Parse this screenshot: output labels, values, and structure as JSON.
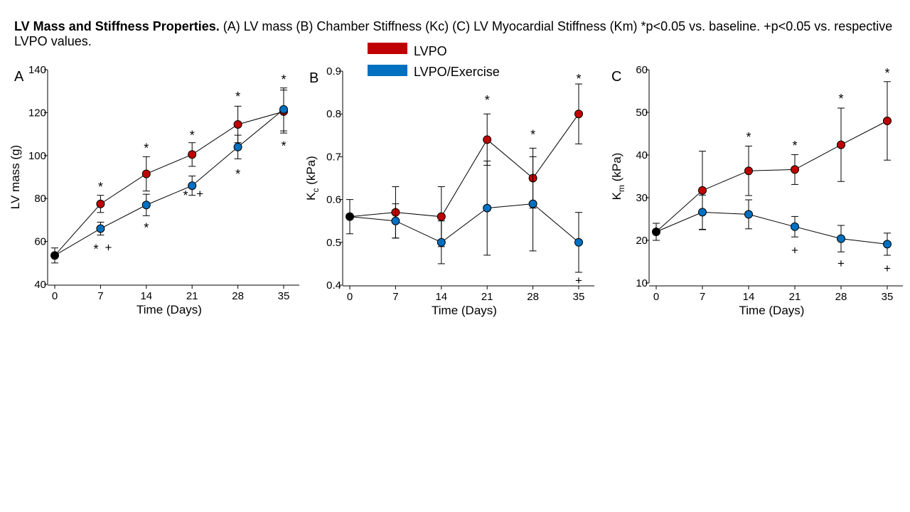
{
  "caption": {
    "bold": "LV Mass and Stiffness Properties.",
    "text": " (A) LV mass (B) Chamber Stiffness (Kc) (C) LV Myocardial Stiffness (Km) *p<0.05 vs. baseline. +p<0.05 vs. respective LVPO values."
  },
  "legend": [
    {
      "label": "LVPO",
      "color": "#c00000"
    },
    {
      "label": "LVPO/Exercise",
      "color": "#0070c0"
    }
  ],
  "colors": {
    "baseline": "#000000",
    "lvpo": "#c00000",
    "exercise": "#0070c0"
  },
  "chart_data": [
    {
      "panel": "A",
      "type": "line",
      "xlabel": "Time (Days)",
      "ylabel": "LV mass (g)",
      "ylabel_sub": "",
      "x": [
        0,
        7,
        14,
        21,
        28,
        35
      ],
      "ylim": [
        40,
        140
      ],
      "yticks": [
        40,
        60,
        80,
        100,
        120,
        140
      ],
      "baseline": {
        "x": 0,
        "y": 53.5,
        "err": 3.5
      },
      "series": [
        {
          "name": "LVPO",
          "x": [
            0,
            7,
            14,
            21,
            28,
            35
          ],
          "values": [
            53.5,
            77.5,
            91.5,
            100.5,
            114.5,
            120.5
          ],
          "err": [
            3.5,
            4,
            8,
            5.5,
            8.5,
            10
          ],
          "marker": [
            false,
            true,
            true,
            true,
            true,
            true
          ],
          "annotations": [
            {
              "x": 7,
              "text": "*",
              "y": 86
            },
            {
              "x": 14,
              "text": "*",
              "y": 104
            },
            {
              "x": 21,
              "text": "*",
              "y": 110
            },
            {
              "x": 28,
              "text": "*",
              "y": 128
            },
            {
              "x": 35,
              "text": "*",
              "y": 136
            }
          ]
        },
        {
          "name": "LVPO/Exercise",
          "x": [
            0,
            7,
            14,
            21,
            28,
            35
          ],
          "values": [
            53.5,
            66,
            77,
            86,
            104,
            121.5
          ],
          "err": [
            3.5,
            3,
            5,
            4.5,
            5.5,
            10
          ],
          "marker": [
            false,
            true,
            true,
            true,
            true,
            true
          ],
          "annotations": [
            {
              "x": 6.3,
              "text": "*",
              "y": 57
            },
            {
              "x": 8.2,
              "text": "+",
              "y": 57
            },
            {
              "x": 14,
              "text": "*",
              "y": 67
            },
            {
              "x": 20,
              "text": "*",
              "y": 82
            },
            {
              "x": 22.2,
              "text": "+",
              "y": 82
            },
            {
              "x": 28,
              "text": "*",
              "y": 92
            },
            {
              "x": 35,
              "text": "*",
              "y": 105
            }
          ]
        }
      ]
    },
    {
      "panel": "B",
      "type": "line",
      "xlabel": "Time (Days)",
      "ylabel": "K",
      "ylabel_sub": "c",
      "ylabel_unit": "(kPa)",
      "x": [
        0,
        7,
        14,
        21,
        28,
        35
      ],
      "ylim": [
        0.4,
        0.9
      ],
      "yticks": [
        0.4,
        0.5,
        0.6,
        0.7,
        0.8,
        0.9
      ],
      "baseline": {
        "x": 0,
        "y": 0.56,
        "err": 0.04
      },
      "series": [
        {
          "name": "LVPO",
          "x": [
            0,
            7,
            14,
            21,
            28,
            35
          ],
          "values": [
            0.56,
            0.57,
            0.56,
            0.74,
            0.65,
            0.8
          ],
          "err": [
            0.04,
            0.06,
            0.07,
            0.06,
            0.07,
            0.07
          ],
          "marker": [
            false,
            true,
            true,
            true,
            true,
            true
          ],
          "annotations": [
            {
              "x": 21,
              "text": "*",
              "y": 0.835
            },
            {
              "x": 28,
              "text": "*",
              "y": 0.755
            },
            {
              "x": 35,
              "text": "*",
              "y": 0.885
            }
          ]
        },
        {
          "name": "LVPO/Exercise",
          "x": [
            0,
            7,
            14,
            21,
            28,
            35
          ],
          "values": [
            0.56,
            0.55,
            0.5,
            0.58,
            0.59,
            0.5
          ],
          "err": [
            0.04,
            0.04,
            0.05,
            0.11,
            0.11,
            0.07
          ],
          "marker": [
            false,
            true,
            true,
            true,
            true,
            true
          ],
          "annotations": [
            {
              "x": 35,
              "text": "+",
              "y": 0.41
            }
          ]
        }
      ]
    },
    {
      "panel": "C",
      "type": "line",
      "xlabel": "Time (Days)",
      "ylabel": "K",
      "ylabel_sub": "m",
      "ylabel_unit": "(kPa)",
      "x": [
        0,
        7,
        14,
        21,
        28,
        35
      ],
      "ylim": [
        10,
        60
      ],
      "yticks": [
        10,
        20,
        30,
        40,
        50,
        60
      ],
      "baseline": {
        "x": 0,
        "y": 22,
        "err": 2
      },
      "series": [
        {
          "name": "LVPO",
          "x": [
            0,
            7,
            14,
            21,
            28,
            35
          ],
          "values": [
            22,
            31.7,
            36.3,
            36.6,
            42.4,
            48
          ],
          "err": [
            2,
            9.2,
            5.8,
            3.5,
            8.6,
            9.2
          ],
          "marker": [
            false,
            true,
            true,
            true,
            true,
            true
          ],
          "annotations": [
            {
              "x": 14,
              "text": "*",
              "y": 44.5
            },
            {
              "x": 21,
              "text": "*",
              "y": 42.5
            },
            {
              "x": 28,
              "text": "*",
              "y": 53.5
            },
            {
              "x": 35,
              "text": "*",
              "y": 59.5
            }
          ]
        },
        {
          "name": "LVPO/Exercise",
          "x": [
            0,
            7,
            14,
            21,
            28,
            35
          ],
          "values": [
            22,
            26.6,
            26.1,
            23.2,
            20.4,
            19.1
          ],
          "err": [
            2,
            4,
            3.4,
            2.4,
            3.1,
            2.6
          ],
          "marker": [
            false,
            true,
            true,
            true,
            true,
            true
          ],
          "annotations": [
            {
              "x": 21,
              "text": "+",
              "y": 17.6
            },
            {
              "x": 28,
              "text": "+",
              "y": 14.5
            },
            {
              "x": 35,
              "text": "+",
              "y": 13.3
            }
          ]
        }
      ]
    }
  ]
}
